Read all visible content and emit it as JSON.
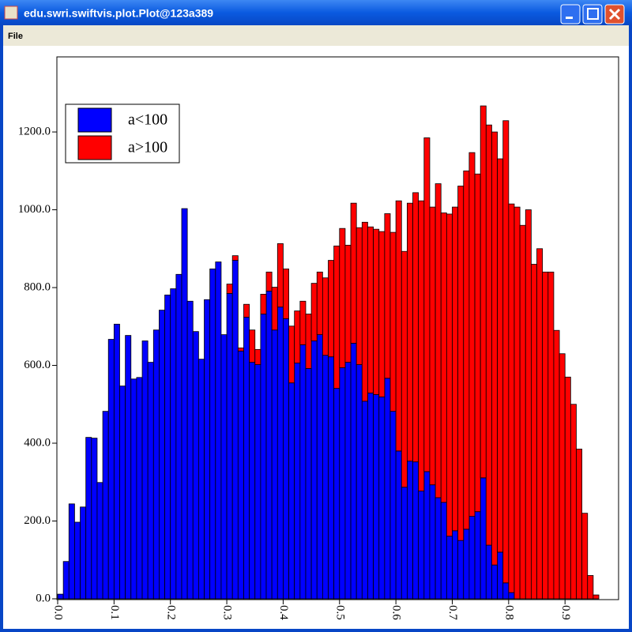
{
  "window": {
    "title": "edu.swri.swiftvis.plot.Plot@123a389",
    "menu": [
      "File"
    ]
  },
  "chart_data": {
    "type": "histogram",
    "stacked": true,
    "bins": [
      0,
      0.01,
      0.02,
      0.03,
      0.04,
      0.05,
      0.06,
      0.07,
      0.08,
      0.09,
      0.1,
      0.11,
      0.12,
      0.13,
      0.14,
      0.15,
      0.16,
      0.17,
      0.18,
      0.19,
      0.2,
      0.21,
      0.22,
      0.23,
      0.24,
      0.25,
      0.26,
      0.27,
      0.28,
      0.29,
      0.3,
      0.31,
      0.32,
      0.33,
      0.34,
      0.35,
      0.36,
      0.37,
      0.38,
      0.39,
      0.4,
      0.41,
      0.42,
      0.43,
      0.44,
      0.45,
      0.46,
      0.47,
      0.48,
      0.49,
      0.5,
      0.51,
      0.52,
      0.53,
      0.54,
      0.55,
      0.56,
      0.57,
      0.58,
      0.59,
      0.6,
      0.61,
      0.62,
      0.63,
      0.64,
      0.65,
      0.66,
      0.67,
      0.68,
      0.69,
      0.7,
      0.71,
      0.72,
      0.73,
      0.74,
      0.75,
      0.76,
      0.77,
      0.78,
      0.79,
      0.8,
      0.81,
      0.82,
      0.83,
      0.84,
      0.85,
      0.86,
      0.87,
      0.88,
      0.89,
      0.9,
      0.91,
      0.92,
      0.93,
      0.94,
      0.95,
      0.96
    ],
    "series": [
      {
        "name": "a<100",
        "color": "#0000ff",
        "values": [
          12,
          96,
          244,
          197,
          236,
          415,
          413,
          299,
          482,
          667,
          706,
          547,
          677,
          565,
          569,
          663,
          608,
          691,
          742,
          781,
          797,
          834,
          1003,
          765,
          687,
          616,
          769,
          848,
          866,
          679,
          785,
          870,
          637,
          724,
          608,
          602,
          732,
          791,
          691,
          750,
          720,
          555,
          606,
          653,
          592,
          663,
          679,
          626,
          622,
          541,
          594,
          608,
          657,
          602,
          508,
          529,
          525,
          519,
          567,
          482,
          380,
          287,
          354,
          352,
          277,
          327,
          293,
          260,
          248,
          161,
          175,
          150,
          179,
          212,
          224,
          311,
          138,
          87,
          120,
          41,
          16,
          0,
          0,
          0,
          0,
          0,
          0,
          0,
          0,
          0,
          0,
          0,
          0,
          0,
          0,
          0
        ]
      },
      {
        "name": "a>100",
        "color": "#ff0000",
        "values": [
          0,
          0,
          0,
          0,
          0,
          0,
          0,
          0,
          0,
          0,
          0,
          0,
          0,
          0,
          0,
          0,
          0,
          0,
          0,
          0,
          0,
          0,
          0,
          0,
          0,
          0,
          0,
          0,
          0,
          0,
          24,
          12,
          8,
          33,
          83,
          39,
          51,
          49,
          110,
          163,
          128,
          146,
          134,
          112,
          140,
          148,
          161,
          199,
          248,
          366,
          358,
          301,
          360,
          352,
          460,
          427,
          425,
          425,
          423,
          460,
          643,
          606,
          663,
          692,
          746,
          858,
          714,
          807,
          744,
          828,
          832,
          911,
          921,
          935,
          868,
          956,
          1080,
          1113,
          1011,
          1188,
          999,
          1007,
          960,
          1000,
          860,
          900,
          840,
          840,
          690,
          630,
          570,
          500,
          385,
          220,
          60,
          10
        ]
      }
    ],
    "xlim": [
      0,
      0.995
    ],
    "ylim": [
      0,
      1393
    ],
    "xticks": [
      {
        "value": 0,
        "label": "0.0"
      },
      {
        "value": 0.1,
        "label": "0.1"
      },
      {
        "value": 0.2,
        "label": "0.2"
      },
      {
        "value": 0.3,
        "label": "0.3"
      },
      {
        "value": 0.4,
        "label": "0.4"
      },
      {
        "value": 0.5,
        "label": "0.5"
      },
      {
        "value": 0.6,
        "label": "0.6"
      },
      {
        "value": 0.7,
        "label": "0.7"
      },
      {
        "value": 0.8,
        "label": "0.8"
      },
      {
        "value": 0.9,
        "label": "0.9"
      }
    ],
    "yticks": [
      {
        "value": 0,
        "label": "0.0"
      },
      {
        "value": 200,
        "label": "200.0"
      },
      {
        "value": 400,
        "label": "400.0"
      },
      {
        "value": 600,
        "label": "600.0"
      },
      {
        "value": 800,
        "label": "800.0"
      },
      {
        "value": 1000,
        "label": "1000.0"
      },
      {
        "value": 1200,
        "label": "1200.0"
      }
    ],
    "grid": false,
    "legend": "upper-left"
  }
}
